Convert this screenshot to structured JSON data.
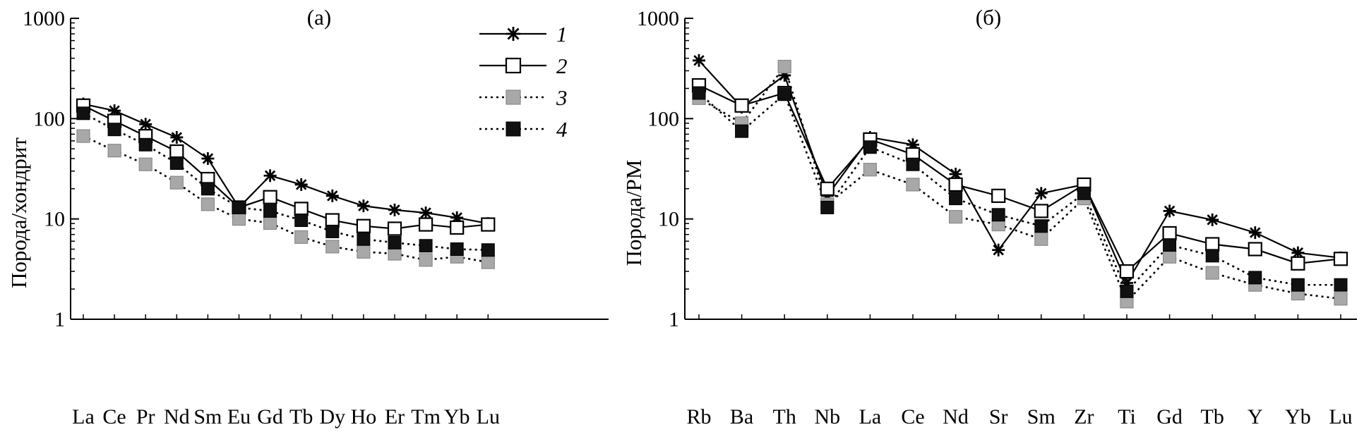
{
  "chart_data": [
    {
      "type": "line",
      "panel_label": "(а)",
      "ylabel": "Порода/хондрит",
      "yscale": "log",
      "ylim": [
        1,
        1000
      ],
      "y_ticks": [
        "1",
        "10",
        "100",
        "1000"
      ],
      "grid": false,
      "legend_position": "top-right",
      "categories": [
        "La",
        "Ce",
        "Pr",
        "Nd",
        "Sm",
        "Eu",
        "Gd",
        "Tb",
        "Dy",
        "Ho",
        "Er",
        "Tm",
        "Yb",
        "Lu"
      ],
      "series": [
        {
          "name": "1",
          "marker": "star",
          "line": "solid",
          "values": [
            140,
            120,
            88,
            65,
            40,
            13,
            27,
            22,
            17,
            13.5,
            12.3,
            11.5,
            10.3,
            9
          ]
        },
        {
          "name": "2",
          "marker": "open-square",
          "line": "solid",
          "values": [
            135,
            95,
            67,
            47,
            25,
            13,
            16.5,
            12.6,
            9.7,
            8.5,
            8,
            8.8,
            8.2,
            8.8
          ]
        },
        {
          "name": "3",
          "marker": "gray-square",
          "line": "dotted",
          "values": [
            67,
            48,
            35,
            23,
            14,
            10,
            9.1,
            6.6,
            5.3,
            4.7,
            4.5,
            3.9,
            4.2,
            3.7
          ]
        },
        {
          "name": "4",
          "marker": "black-square",
          "line": "dotted",
          "values": [
            113,
            78,
            55,
            36,
            20,
            13,
            12,
            9.7,
            7.5,
            6.3,
            5.8,
            5.4,
            5,
            4.9
          ]
        }
      ]
    },
    {
      "type": "line",
      "panel_label": "(б)",
      "ylabel": "Порода/PM",
      "yscale": "log",
      "ylim": [
        1,
        1000
      ],
      "y_ticks": [
        "1",
        "10",
        "100",
        "1000"
      ],
      "grid": false,
      "categories": [
        "Rb",
        "Ba",
        "Th",
        "Nb",
        "La",
        "Ce",
        "Nd",
        "Sr",
        "Sm",
        "Zr",
        "Ti",
        "Gd",
        "Tb",
        "Y",
        "Yb",
        "Lu"
      ],
      "series": [
        {
          "name": "1",
          "marker": "star",
          "line": "solid",
          "values": [
            380,
            130,
            270,
            17,
            65,
            55,
            28,
            4.9,
            18,
            22,
            2.3,
            12,
            9.8,
            7.3,
            4.6,
            4.1
          ]
        },
        {
          "name": "2",
          "marker": "open-square",
          "line": "solid",
          "values": [
            215,
            135,
            180,
            20,
            62,
            44,
            22,
            17,
            12,
            22,
            3,
            7.2,
            5.6,
            5,
            3.6,
            4
          ]
        },
        {
          "name": "3",
          "marker": "gray-square",
          "line": "dotted",
          "values": [
            160,
            90,
            330,
            14,
            31,
            22,
            10.5,
            8.8,
            6.3,
            16,
            1.5,
            4.2,
            2.9,
            2.2,
            1.8,
            1.6
          ]
        },
        {
          "name": "4",
          "marker": "black-square",
          "line": "dotted",
          "values": [
            180,
            75,
            175,
            13,
            52,
            35,
            16,
            11,
            8.5,
            18,
            1.9,
            5.5,
            4.3,
            2.6,
            2.2,
            2.2
          ]
        }
      ]
    }
  ],
  "legend": {
    "entries": [
      {
        "label": "1",
        "marker": "star",
        "line": "solid"
      },
      {
        "label": "2",
        "marker": "open-square",
        "line": "solid"
      },
      {
        "label": "3",
        "marker": "gray-square",
        "line": "dotted"
      },
      {
        "label": "4",
        "marker": "black-square",
        "line": "dotted"
      }
    ]
  },
  "colors": {
    "line": "#000000",
    "gray_marker": "#a8a8a8",
    "black_marker": "#111111",
    "open_marker": "#ffffff"
  }
}
